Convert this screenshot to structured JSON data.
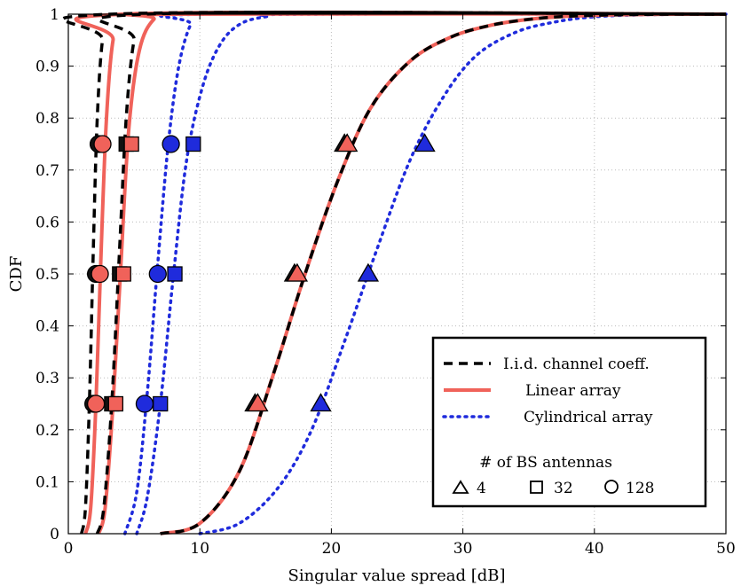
{
  "chart_data": {
    "type": "line",
    "title": "",
    "xlabel": "Singular value spread [dB]",
    "ylabel": "CDF",
    "xlim": [
      0,
      50
    ],
    "ylim": [
      0,
      1
    ],
    "xticks": [
      "0",
      "10",
      "20",
      "30",
      "40",
      "50"
    ],
    "yticks": [
      "0",
      "0.1",
      "0.2",
      "0.3",
      "0.4",
      "0.5",
      "0.6",
      "0.7",
      "0.8",
      "0.9",
      "1"
    ],
    "grid": true,
    "legend_position": "bottom-right",
    "legend": {
      "entries": [
        {
          "label": "I.i.d. channel coeff.",
          "style": "dashed",
          "color": "#000000"
        },
        {
          "label": "Linear array",
          "style": "solid",
          "color": "#f0625a"
        },
        {
          "label": "Cylindrical array",
          "style": "dotted",
          "color": "#1f2bdc"
        }
      ],
      "markers_title": "# of BS antennas",
      "marker_entries": [
        {
          "label": "4",
          "marker": "triangle"
        },
        {
          "label": "32",
          "marker": "square"
        },
        {
          "label": "128",
          "marker": "circle"
        }
      ]
    },
    "series": [
      {
        "scenario": "iid",
        "antennas": 128,
        "marker": "circle",
        "x": [
          1.0,
          1.3,
          1.6,
          1.9,
          2.2,
          2.6,
          3.2
        ],
        "y": [
          0,
          0.05,
          0.25,
          0.55,
          0.8,
          0.95,
          1
        ]
      },
      {
        "scenario": "iid",
        "antennas": 32,
        "marker": "square",
        "x": [
          2.2,
          2.7,
          3.3,
          3.9,
          4.4,
          5.0,
          5.8
        ],
        "y": [
          0,
          0.05,
          0.25,
          0.55,
          0.8,
          0.95,
          1
        ]
      },
      {
        "scenario": "iid",
        "antennas": 4,
        "marker": "triangle",
        "x": [
          7.0,
          10.0,
          13.0,
          15.5,
          18.0,
          20.5,
          23.0,
          26.0,
          29.0,
          32.0,
          35.0,
          38.0,
          42.0,
          47.0
        ],
        "y": [
          0,
          0.02,
          0.12,
          0.3,
          0.5,
          0.68,
          0.82,
          0.91,
          0.955,
          0.978,
          0.99,
          0.996,
          0.999,
          1
        ]
      },
      {
        "scenario": "linear",
        "antennas": 128,
        "marker": "circle",
        "x": [
          1.3,
          1.7,
          2.1,
          2.5,
          2.9,
          3.4,
          4.2
        ],
        "y": [
          0,
          0.05,
          0.25,
          0.55,
          0.8,
          0.95,
          1
        ]
      },
      {
        "scenario": "linear",
        "antennas": 32,
        "marker": "square",
        "x": [
          2.3,
          2.8,
          3.4,
          4.0,
          4.6,
          5.4,
          6.5,
          8.0
        ],
        "y": [
          0,
          0.05,
          0.25,
          0.52,
          0.78,
          0.93,
          0.99,
          1
        ]
      },
      {
        "scenario": "linear",
        "antennas": 4,
        "marker": "triangle",
        "x": [
          7.0,
          10.0,
          13.0,
          15.5,
          18.0,
          20.5,
          23.0,
          26.0,
          29.0,
          32.0,
          35.0,
          38.0,
          42.0,
          47.0
        ],
        "y": [
          0,
          0.02,
          0.12,
          0.3,
          0.5,
          0.68,
          0.82,
          0.91,
          0.955,
          0.978,
          0.99,
          0.996,
          0.999,
          1
        ]
      },
      {
        "scenario": "cylindrical",
        "antennas": 128,
        "marker": "circle",
        "x": [
          4.3,
          5.2,
          6.0,
          6.8,
          7.6,
          8.4,
          9.3,
          10.2
        ],
        "y": [
          0,
          0.08,
          0.27,
          0.52,
          0.75,
          0.9,
          0.98,
          1
        ]
      },
      {
        "scenario": "cylindrical",
        "antennas": 32,
        "marker": "square",
        "x": [
          5.2,
          6.0,
          7.0,
          8.0,
          9.0,
          10.2,
          11.5,
          13.0,
          15.0,
          18.0
        ],
        "y": [
          0,
          0.07,
          0.25,
          0.5,
          0.72,
          0.86,
          0.94,
          0.98,
          0.995,
          1
        ]
      },
      {
        "scenario": "cylindrical",
        "antennas": 4,
        "marker": "triangle",
        "x": [
          10.0,
          13.0,
          16.0,
          18.5,
          21.0,
          23.5,
          26.0,
          28.5,
          31.0,
          34.0,
          37.0,
          40.0,
          44.0,
          50.0
        ],
        "y": [
          0,
          0.02,
          0.09,
          0.2,
          0.37,
          0.55,
          0.72,
          0.84,
          0.92,
          0.965,
          0.985,
          0.995,
          0.999,
          1
        ]
      }
    ],
    "markers": [
      {
        "scenario": "iid",
        "antennas": 128,
        "points": [
          [
            1.9,
            0.25
          ],
          [
            2.1,
            0.5
          ],
          [
            2.3,
            0.75
          ]
        ]
      },
      {
        "scenario": "iid",
        "antennas": 32,
        "points": [
          [
            3.3,
            0.25
          ],
          [
            3.9,
            0.5
          ],
          [
            4.4,
            0.75
          ]
        ]
      },
      {
        "scenario": "iid",
        "antennas": 4,
        "points": [
          [
            14.2,
            0.25
          ],
          [
            17.2,
            0.5
          ],
          [
            21.0,
            0.75
          ]
        ]
      },
      {
        "scenario": "linear",
        "antennas": 128,
        "points": [
          [
            2.1,
            0.25
          ],
          [
            2.4,
            0.5
          ],
          [
            2.6,
            0.75
          ]
        ]
      },
      {
        "scenario": "linear",
        "antennas": 32,
        "points": [
          [
            3.6,
            0.25
          ],
          [
            4.2,
            0.5
          ],
          [
            4.8,
            0.75
          ]
        ]
      },
      {
        "scenario": "linear",
        "antennas": 4,
        "points": [
          [
            14.4,
            0.25
          ],
          [
            17.4,
            0.5
          ],
          [
            21.2,
            0.75
          ]
        ]
      },
      {
        "scenario": "cylindrical",
        "antennas": 128,
        "points": [
          [
            5.8,
            0.25
          ],
          [
            6.8,
            0.5
          ],
          [
            7.8,
            0.75
          ]
        ]
      },
      {
        "scenario": "cylindrical",
        "antennas": 32,
        "points": [
          [
            7.0,
            0.25
          ],
          [
            8.1,
            0.5
          ],
          [
            9.5,
            0.75
          ]
        ]
      },
      {
        "scenario": "cylindrical",
        "antennas": 4,
        "points": [
          [
            19.2,
            0.25
          ],
          [
            22.8,
            0.5
          ],
          [
            27.1,
            0.75
          ]
        ]
      }
    ],
    "styles": {
      "iid": {
        "color": "#000000",
        "dash": "10,7",
        "width": 3.5
      },
      "linear": {
        "color": "#f0625a",
        "dash": "",
        "width": 4
      },
      "cylindrical": {
        "color": "#1f2bdc",
        "dash": "2,6",
        "width": 3.5
      },
      "marker_fill_linear": "#f0625a",
      "marker_fill_cylindrical": "#1f2bdc",
      "marker_fill_iid": "#111111"
    }
  }
}
